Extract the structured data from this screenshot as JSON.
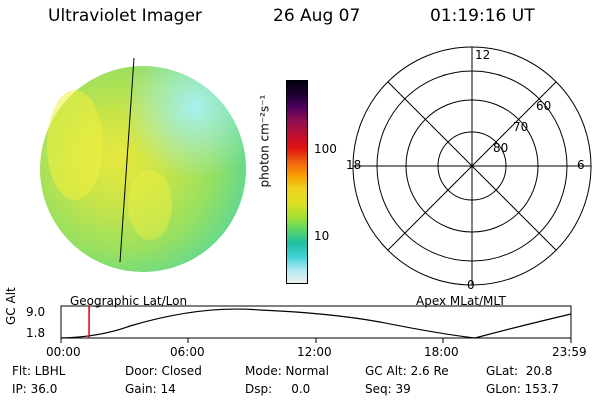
{
  "header": {
    "instrument": "Ultraviolet Imager",
    "date": "26 Aug 07",
    "time": "01:19:16 UT"
  },
  "colorbar": {
    "unit_label": "photon cm⁻²s⁻¹",
    "ticks": [
      "100",
      "10"
    ],
    "colors": [
      "#f0f0f0",
      "#a8e8f0",
      "#40d0d8",
      "#20c0a0",
      "#60d860",
      "#a8e030",
      "#e0e020",
      "#f0d020",
      "#f8a000",
      "#f06010",
      "#e01010",
      "#c01030",
      "#901050",
      "#500060",
      "#200030",
      "#000010"
    ]
  },
  "polar_grid": {
    "mlt_labels": {
      "top": "12",
      "right": "6",
      "bottom": "0",
      "left": "18"
    },
    "lat_labels": [
      "60",
      "70",
      "80"
    ]
  },
  "timeline": {
    "left_caption": "Geographic Lat/Lon",
    "right_caption": "Apex MLat/MLT",
    "y_axis_label": "GC Alt",
    "y_ticks": [
      "9.0",
      "1.8"
    ],
    "x_ticks": [
      "00:00",
      "06:00",
      "12:00",
      "18:00",
      "23:59"
    ],
    "marker_time": "01:19:16",
    "marker_color": "#e00000"
  },
  "info": {
    "flt": "Flt: LBHL",
    "ip": "IP: 36.0",
    "door": "Door: Closed",
    "gain": "Gain: 14",
    "mode": "Mode: Normal",
    "dsp": "Dsp:     0.0",
    "gcalt": "GC Alt: 2.6 Re",
    "seq": "Seq: 39",
    "glat": "GLat:  20.8",
    "glon": "GLon: 153.7"
  }
}
